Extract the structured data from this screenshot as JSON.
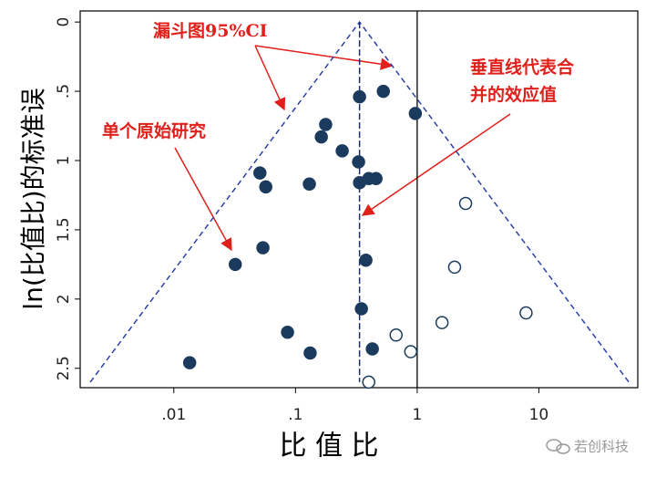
{
  "chart_data": {
    "type": "scatter",
    "xlabel": "比 值 比",
    "ylabel": "ln(比值比)的标准误",
    "xscale": "log",
    "xlim": [
      0.0017,
      65
    ],
    "xticks": [
      {
        "value": 0.01,
        "label": ".01"
      },
      {
        "value": 0.1,
        "label": ".1"
      },
      1,
      10
    ],
    "ylim": [
      -0.08,
      2.64
    ],
    "y_reversed": true,
    "yticks": [
      0,
      {
        "value": 0.5,
        "label": ".5"
      },
      1,
      1.5,
      2,
      2.5
    ],
    "pooled_estimate": 0.336,
    "reference_line": 1,
    "funnel_se_max": 2.6,
    "series": [
      {
        "marker": "filled",
        "color": "#1b3b5e",
        "x": [
          0.336,
          0.527,
          0.966,
          0.177,
          0.163,
          0.242,
          0.33,
          0.051,
          0.057,
          0.13,
          0.4,
          0.459,
          0.336,
          0.054,
          0.032,
          0.379,
          0.348,
          0.086,
          0.132,
          0.428,
          0.0135
        ],
        "values": [
          0.54,
          0.5,
          0.66,
          0.74,
          0.83,
          0.93,
          1.01,
          1.09,
          1.19,
          1.17,
          1.13,
          1.13,
          1.16,
          1.63,
          1.75,
          1.72,
          2.07,
          2.24,
          2.39,
          2.36,
          2.46
        ]
      },
      {
        "marker": "hollow",
        "color": "#1b3b5e",
        "x": [
          2.5,
          2.03,
          7.85,
          1.6,
          0.671,
          0.885,
          0.4
        ],
        "values": [
          1.31,
          1.77,
          2.1,
          2.17,
          2.26,
          2.38,
          2.6
        ]
      }
    ],
    "annotations": [
      {
        "lines": [
          "漏斗图95%CI"
        ]
      },
      {
        "lines": [
          "垂直线代表合",
          "并的效应值"
        ]
      },
      {
        "lines": [
          "单个原始研究"
        ]
      }
    ],
    "watermark": "若创科技"
  }
}
